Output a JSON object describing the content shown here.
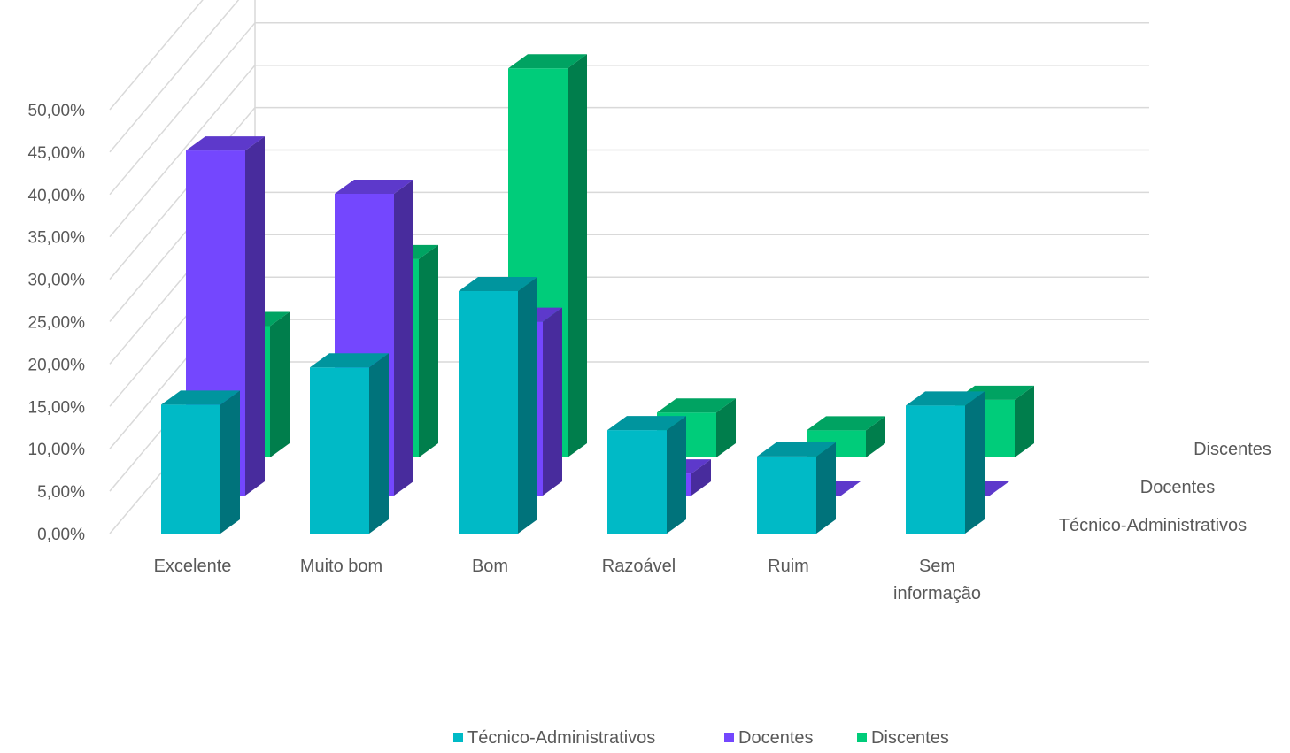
{
  "chart_data": {
    "type": "bar",
    "subtype": "3d-column",
    "categories": [
      "Excelente",
      "Muito bom",
      "Bom",
      "Razoável",
      "Ruim",
      "Sem informação"
    ],
    "series": [
      {
        "name": "Técnico-Administrativos",
        "values": [
          15.2,
          19.6,
          28.6,
          12.2,
          9.1,
          15.1
        ],
        "color": "#00BAC6"
      },
      {
        "name": "Docentes",
        "values": [
          40.7,
          35.6,
          20.5,
          2.6,
          0,
          0
        ],
        "color": "#7447FE"
      },
      {
        "name": "Discentes",
        "values": [
          15.5,
          23.4,
          45.9,
          5.3,
          3.2,
          6.8
        ],
        "color": "#00CC7A"
      }
    ],
    "y_ticks": [
      "0,00%",
      "5,00%",
      "10,00%",
      "15,00%",
      "20,00%",
      "25,00%",
      "30,00%",
      "35,00%",
      "40,00%",
      "45,00%",
      "50,00%"
    ],
    "ylim": [
      0,
      50
    ],
    "grid": true,
    "legend_position": "bottom",
    "title": "",
    "xlabel": "",
    "ylabel": ""
  }
}
